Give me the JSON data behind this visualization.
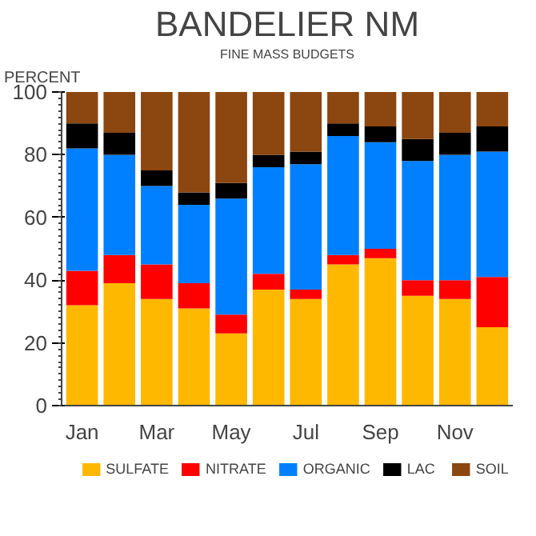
{
  "chart_data": {
    "type": "bar",
    "title": "BANDELIER NM",
    "subtitle": "FINE MASS BUDGETS",
    "ylabel": "PERCENT",
    "categories": [
      "Jan",
      null,
      "Mar",
      null,
      "May",
      null,
      "Jul",
      null,
      "Sep",
      null,
      "Nov",
      null
    ],
    "stacked": true,
    "series": [
      {
        "name": "SULFATE",
        "color": "#ffb800",
        "values": [
          32,
          39,
          34,
          31,
          23,
          37,
          34,
          45,
          47,
          35,
          34,
          25
        ]
      },
      {
        "name": "NITRATE",
        "color": "#ff0000",
        "values": [
          11,
          9,
          11,
          8,
          6,
          5,
          3,
          3,
          3,
          5,
          6,
          16
        ]
      },
      {
        "name": "ORGANIC",
        "color": "#0080ff",
        "values": [
          39,
          32,
          25,
          25,
          37,
          34,
          40,
          38,
          34,
          38,
          40,
          40
        ]
      },
      {
        "name": "LAC",
        "color": "#000000",
        "values": [
          8,
          7,
          5,
          4,
          5,
          4,
          4,
          4,
          5,
          7,
          7,
          8
        ]
      },
      {
        "name": "SOIL",
        "color": "#8c4610",
        "values": [
          10,
          13,
          25,
          32,
          29,
          20,
          19,
          10,
          11,
          15,
          13,
          11
        ]
      }
    ],
    "ylim": [
      0,
      100
    ],
    "yticks": [
      0,
      20,
      40,
      60,
      80,
      100
    ],
    "grid": false,
    "legend": "bottom"
  }
}
